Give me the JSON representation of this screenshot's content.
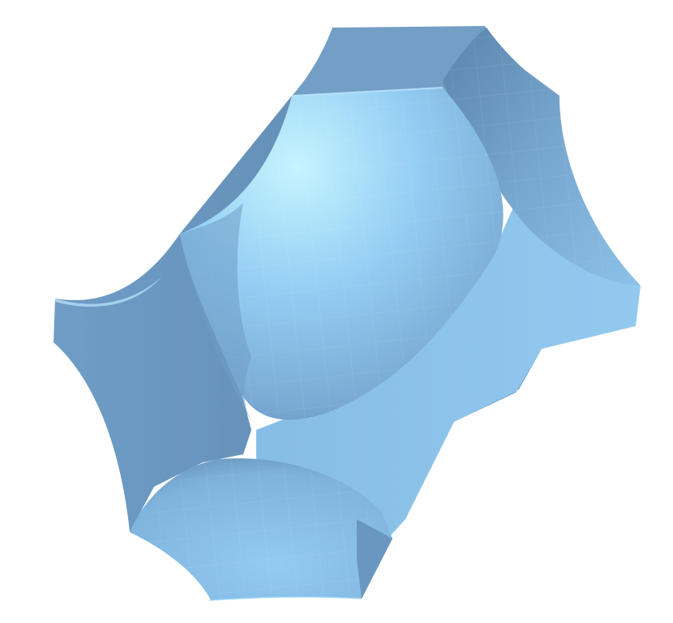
{
  "scene": {
    "kind": "3d-render",
    "subject": "minimal-surface",
    "background_color": "#ffffff",
    "colors": {
      "face_light": "#8ec5ec",
      "face_mid": "#7fb1d8",
      "face_dark": "#6f9dc4",
      "face_shadow": "#5f87ad",
      "dome_highlight": "#c6f4ff",
      "dome_base": "#86bfe9",
      "dome_edge": "#5f8fb8",
      "rim_color": "#bde7ff"
    },
    "shading": "faceted",
    "labels": []
  }
}
